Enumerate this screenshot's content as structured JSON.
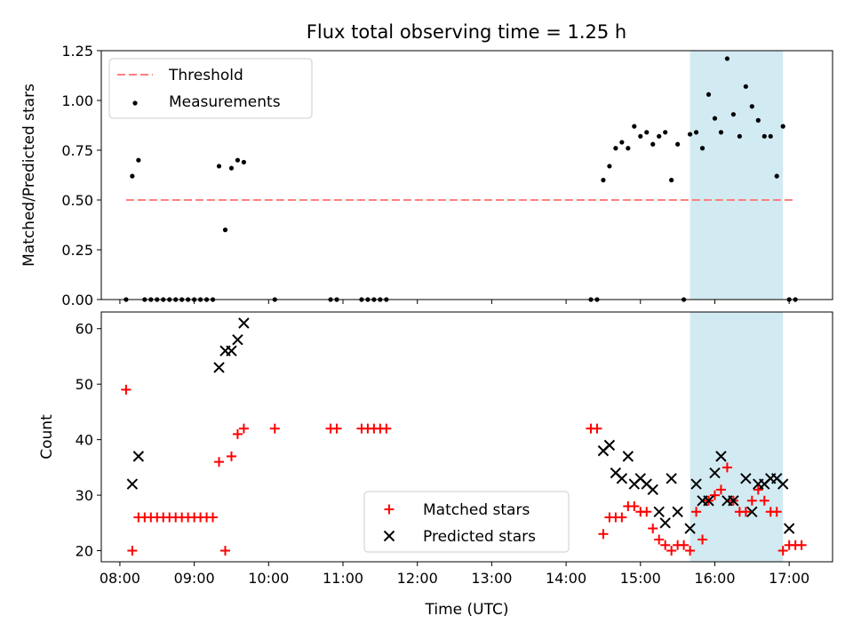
{
  "title": "Flux total observing time = 1.25 h",
  "colors": {
    "threshold": "#ff7f7f",
    "measurement": "#000000",
    "matched": "#ff0000",
    "predicted": "#000000",
    "highlight": "#add8e6"
  },
  "chart_data": [
    {
      "type": "scatter",
      "panel": "top",
      "title": "Flux total observing time = 1.25 h",
      "xlabel": "",
      "ylabel": "Matched/Predicted stars",
      "xlim": [
        "07:45",
        "17:35"
      ],
      "ylim": [
        0,
        1.25
      ],
      "xticks": [
        "08:00",
        "09:00",
        "10:00",
        "11:00",
        "12:00",
        "13:00",
        "14:00",
        "15:00",
        "16:00",
        "17:00"
      ],
      "yticks": [
        "0.00",
        "0.25",
        "0.50",
        "0.75",
        "1.00",
        "1.25"
      ],
      "highlight_span": [
        "15:40",
        "16:55"
      ],
      "legend": {
        "position": "upper-left",
        "entries": [
          "Threshold",
          "Measurements"
        ]
      },
      "threshold": {
        "name": "Threshold",
        "value": 0.5,
        "x_range": [
          "08:05",
          "17:05"
        ]
      },
      "series": [
        {
          "name": "Measurements",
          "points": [
            [
              "08:05",
              0
            ],
            [
              "08:10",
              0.62
            ],
            [
              "08:15",
              0.7
            ],
            [
              "08:20",
              0
            ],
            [
              "08:25",
              0
            ],
            [
              "08:30",
              0
            ],
            [
              "08:35",
              0
            ],
            [
              "08:40",
              0
            ],
            [
              "08:45",
              0
            ],
            [
              "08:50",
              0
            ],
            [
              "08:55",
              0
            ],
            [
              "09:00",
              0
            ],
            [
              "09:05",
              0
            ],
            [
              "09:10",
              0
            ],
            [
              "09:15",
              0
            ],
            [
              "09:20",
              0.67
            ],
            [
              "09:25",
              0.35
            ],
            [
              "09:30",
              0.66
            ],
            [
              "09:35",
              0.7
            ],
            [
              "09:40",
              0.69
            ],
            [
              "10:05",
              0
            ],
            [
              "10:50",
              0
            ],
            [
              "10:55",
              0
            ],
            [
              "11:15",
              0
            ],
            [
              "11:20",
              0
            ],
            [
              "11:25",
              0
            ],
            [
              "11:30",
              0
            ],
            [
              "11:35",
              0
            ],
            [
              "14:20",
              0
            ],
            [
              "14:25",
              0
            ],
            [
              "14:30",
              0.6
            ],
            [
              "14:35",
              0.67
            ],
            [
              "14:40",
              0.76
            ],
            [
              "14:45",
              0.79
            ],
            [
              "14:50",
              0.76
            ],
            [
              "14:55",
              0.87
            ],
            [
              "15:00",
              0.82
            ],
            [
              "15:05",
              0.84
            ],
            [
              "15:10",
              0.78
            ],
            [
              "15:15",
              0.82
            ],
            [
              "15:20",
              0.84
            ],
            [
              "15:25",
              0.6
            ],
            [
              "15:30",
              0.78
            ],
            [
              "15:35",
              0
            ],
            [
              "15:40",
              0.83
            ],
            [
              "15:45",
              0.84
            ],
            [
              "15:50",
              0.76
            ],
            [
              "15:55",
              1.03
            ],
            [
              "16:00",
              0.91
            ],
            [
              "16:05",
              0.84
            ],
            [
              "16:10",
              1.21
            ],
            [
              "16:15",
              0.93
            ],
            [
              "16:20",
              0.82
            ],
            [
              "16:25",
              1.07
            ],
            [
              "16:30",
              0.97
            ],
            [
              "16:35",
              0.9
            ],
            [
              "16:40",
              0.82
            ],
            [
              "16:45",
              0.82
            ],
            [
              "16:50",
              0.62
            ],
            [
              "16:55",
              0.87
            ],
            [
              "17:00",
              0
            ],
            [
              "17:05",
              0
            ]
          ]
        }
      ]
    },
    {
      "type": "scatter",
      "panel": "bottom",
      "title": "",
      "xlabel": "Time (UTC)",
      "ylabel": "Count",
      "xlim": [
        "07:45",
        "17:35"
      ],
      "ylim": [
        18,
        63
      ],
      "xticks": [
        "08:00",
        "09:00",
        "10:00",
        "11:00",
        "12:00",
        "13:00",
        "14:00",
        "15:00",
        "16:00",
        "17:00"
      ],
      "yticks": [
        "20",
        "30",
        "40",
        "50",
        "60"
      ],
      "highlight_span": [
        "15:40",
        "16:55"
      ],
      "legend": {
        "position": "lower-center",
        "entries": [
          "Matched stars",
          "Predicted stars"
        ]
      },
      "series": [
        {
          "name": "Matched stars",
          "marker": "plus",
          "points": [
            [
              "08:05",
              49
            ],
            [
              "08:10",
              20
            ],
            [
              "08:15",
              26
            ],
            [
              "08:20",
              26
            ],
            [
              "08:25",
              26
            ],
            [
              "08:30",
              26
            ],
            [
              "08:35",
              26
            ],
            [
              "08:40",
              26
            ],
            [
              "08:45",
              26
            ],
            [
              "08:50",
              26
            ],
            [
              "08:55",
              26
            ],
            [
              "09:00",
              26
            ],
            [
              "09:05",
              26
            ],
            [
              "09:10",
              26
            ],
            [
              "09:15",
              26
            ],
            [
              "09:20",
              36
            ],
            [
              "09:25",
              20
            ],
            [
              "09:30",
              37
            ],
            [
              "09:35",
              41
            ],
            [
              "09:40",
              42
            ],
            [
              "10:05",
              42
            ],
            [
              "10:50",
              42
            ],
            [
              "10:55",
              42
            ],
            [
              "11:15",
              42
            ],
            [
              "11:20",
              42
            ],
            [
              "11:25",
              42
            ],
            [
              "11:30",
              42
            ],
            [
              "11:35",
              42
            ],
            [
              "14:20",
              42
            ],
            [
              "14:25",
              42
            ],
            [
              "14:30",
              23
            ],
            [
              "14:35",
              26
            ],
            [
              "14:40",
              26
            ],
            [
              "14:45",
              26
            ],
            [
              "14:50",
              28
            ],
            [
              "14:55",
              28
            ],
            [
              "15:00",
              27
            ],
            [
              "15:05",
              27
            ],
            [
              "15:10",
              24
            ],
            [
              "15:15",
              22
            ],
            [
              "15:20",
              21
            ],
            [
              "15:25",
              20
            ],
            [
              "15:30",
              21
            ],
            [
              "15:35",
              21
            ],
            [
              "15:40",
              20
            ],
            [
              "15:45",
              27
            ],
            [
              "15:50",
              22
            ],
            [
              "15:55",
              29
            ],
            [
              "16:00",
              30
            ],
            [
              "16:05",
              31
            ],
            [
              "16:10",
              35
            ],
            [
              "16:15",
              29
            ],
            [
              "16:20",
              27
            ],
            [
              "16:25",
              27
            ],
            [
              "16:30",
              29
            ],
            [
              "16:35",
              31
            ],
            [
              "16:40",
              29
            ],
            [
              "16:45",
              27
            ],
            [
              "16:50",
              27
            ],
            [
              "16:55",
              20
            ],
            [
              "17:00",
              21
            ],
            [
              "17:05",
              21
            ],
            [
              "17:10",
              21
            ]
          ]
        },
        {
          "name": "Predicted stars",
          "marker": "cross",
          "points": [
            [
              "08:10",
              32
            ],
            [
              "08:15",
              37
            ],
            [
              "09:20",
              53
            ],
            [
              "09:25",
              56
            ],
            [
              "09:30",
              56
            ],
            [
              "09:35",
              58
            ],
            [
              "09:40",
              61
            ],
            [
              "14:30",
              38
            ],
            [
              "14:35",
              39
            ],
            [
              "14:40",
              34
            ],
            [
              "14:45",
              33
            ],
            [
              "14:50",
              37
            ],
            [
              "14:55",
              32
            ],
            [
              "15:00",
              33
            ],
            [
              "15:05",
              32
            ],
            [
              "15:10",
              31
            ],
            [
              "15:15",
              27
            ],
            [
              "15:20",
              25
            ],
            [
              "15:25",
              33
            ],
            [
              "15:30",
              27
            ],
            [
              "15:40",
              24
            ],
            [
              "15:45",
              32
            ],
            [
              "15:50",
              29
            ],
            [
              "15:55",
              29
            ],
            [
              "16:00",
              34
            ],
            [
              "16:05",
              37
            ],
            [
              "16:10",
              29
            ],
            [
              "16:15",
              29
            ],
            [
              "16:25",
              33
            ],
            [
              "16:30",
              27
            ],
            [
              "16:35",
              32
            ],
            [
              "16:40",
              32
            ],
            [
              "16:45",
              33
            ],
            [
              "16:50",
              33
            ],
            [
              "16:55",
              32
            ],
            [
              "17:00",
              24
            ]
          ]
        }
      ]
    }
  ]
}
